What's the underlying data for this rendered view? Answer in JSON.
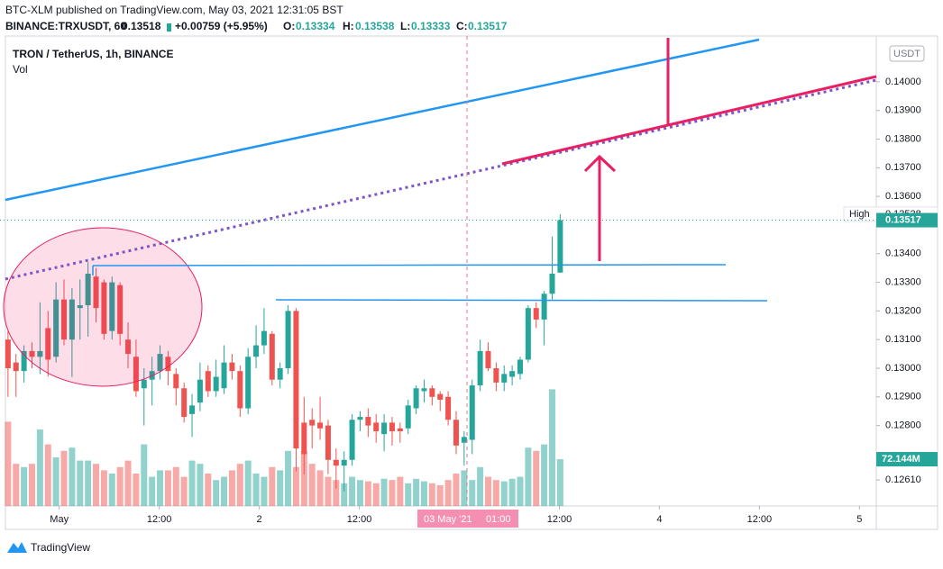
{
  "header": {
    "publisher": "BTC-XLM published on TradingView.com, May 03, 2021 12:31:05 BST",
    "symbol": "BINANCE:TRXUSDT, 60",
    "price": "0.13518",
    "change": "+0.00759 (+5.95%)",
    "o": "O:",
    "h": "H:",
    "l": "L:",
    "c": "C:"
  },
  "legend": {
    "title": "TRON / TetherUS, 1h, BINANCE",
    "volume": "Vol"
  },
  "currency": "USDT",
  "crosshair": {
    "date": "03 May '21",
    "time": "01:00"
  },
  "footer": {
    "brand": "TradingView"
  },
  "chart_data": {
    "type": "candlestick",
    "up_color": "#26a69a",
    "down_color": "#ef5350",
    "open": [
      0.131,
      0.1302,
      0.1299,
      0.1306,
      0.1304,
      0.1314,
      0.1304,
      0.1324,
      0.131,
      0.1321,
      0.1322,
      0.1332,
      0.133,
      0.1313,
      0.1329,
      0.131,
      0.1304,
      0.1293,
      0.1296,
      0.1299,
      0.1304,
      0.1298,
      0.1293,
      0.1284,
      0.1288,
      0.1299,
      0.1292,
      0.1293,
      0.1302,
      0.1299,
      0.1286,
      0.1304,
      0.1308,
      0.1312,
      0.1296,
      0.13,
      0.132,
      0.1281,
      0.1282,
      0.1281,
      0.128,
      0.1268,
      0.1266,
      0.1268,
      0.1282,
      0.1283,
      0.1281,
      0.1277,
      0.1281,
      0.1279,
      0.1279,
      0.1286,
      0.1292,
      0.1293,
      0.1291,
      0.129,
      0.1282,
      0.1274,
      0.1275,
      0.1294,
      0.1306,
      0.13,
      0.1295,
      0.1297,
      0.1298,
      0.1303,
      0.1321,
      0.1317,
      0.1326,
      0.13334
    ],
    "high": [
      0.1313,
      0.1305,
      0.1308,
      0.1309,
      0.1323,
      0.132,
      0.133,
      0.1331,
      0.1328,
      0.1331,
      0.1337,
      0.1335,
      0.1331,
      0.1332,
      0.133,
      0.1316,
      0.131,
      0.13,
      0.1304,
      0.1308,
      0.1306,
      0.13,
      0.1295,
      0.1291,
      0.1302,
      0.1301,
      0.1303,
      0.1308,
      0.1305,
      0.1301,
      0.1307,
      0.1315,
      0.1321,
      0.1313,
      0.1302,
      0.1322,
      0.1321,
      0.129,
      0.1286,
      0.129,
      0.1282,
      0.1272,
      0.1271,
      0.1284,
      0.1285,
      0.1286,
      0.1284,
      0.1284,
      0.1283,
      0.1281,
      0.1289,
      0.1294,
      0.1296,
      0.1294,
      0.1292,
      0.1292,
      0.1285,
      0.1278,
      0.1296,
      0.131,
      0.1309,
      0.1302,
      0.1301,
      0.1301,
      0.1304,
      0.1322,
      0.1323,
      0.1327,
      0.1346,
      0.13538
    ],
    "low": [
      0.129,
      0.129,
      0.1295,
      0.13,
      0.1298,
      0.1297,
      0.1302,
      0.1308,
      0.1297,
      0.131,
      0.1311,
      0.1316,
      0.131,
      0.131,
      0.1308,
      0.13,
      0.129,
      0.128,
      0.1287,
      0.1296,
      0.1294,
      0.1287,
      0.1281,
      0.1276,
      0.1285,
      0.129,
      0.129,
      0.1291,
      0.1296,
      0.1283,
      0.1284,
      0.13,
      0.1305,
      0.1294,
      0.1293,
      0.1298,
      0.1264,
      0.1263,
      0.1272,
      0.1275,
      0.1263,
      0.1258,
      0.1257,
      0.1266,
      0.1278,
      0.1276,
      0.1274,
      0.1271,
      0.1273,
      0.1274,
      0.1277,
      0.1284,
      0.1288,
      0.1287,
      0.1285,
      0.128,
      0.127,
      0.1266,
      0.127,
      0.1292,
      0.1299,
      0.1292,
      0.1292,
      0.1294,
      0.1296,
      0.1302,
      0.1314,
      0.1308,
      0.1324,
      0.13333
    ],
    "close": [
      0.13,
      0.1299,
      0.1306,
      0.1304,
      0.1306,
      0.1303,
      0.1324,
      0.131,
      0.1324,
      0.1322,
      0.1333,
      0.1321,
      0.1312,
      0.133,
      0.1312,
      0.1305,
      0.1292,
      0.1296,
      0.1299,
      0.1305,
      0.1299,
      0.1293,
      0.1283,
      0.1287,
      0.1296,
      0.1292,
      0.1297,
      0.1302,
      0.1299,
      0.1286,
      0.1304,
      0.1308,
      0.1313,
      0.1296,
      0.13,
      0.132,
      0.1272,
      0.127,
      0.128,
      0.1279,
      0.1268,
      0.1266,
      0.1268,
      0.1282,
      0.1283,
      0.128,
      0.1278,
      0.1281,
      0.1278,
      0.1278,
      0.1287,
      0.1293,
      0.1293,
      0.129,
      0.1289,
      0.1282,
      0.1273,
      0.1276,
      0.1294,
      0.1306,
      0.13,
      0.1295,
      0.1298,
      0.1299,
      0.1303,
      0.1321,
      0.1317,
      0.1326,
      0.1333,
      0.13517
    ],
    "volume": [
      130,
      65,
      60,
      65,
      118,
      95,
      75,
      85,
      90,
      70,
      70,
      65,
      55,
      50,
      60,
      70,
      50,
      95,
      45,
      55,
      55,
      60,
      45,
      70,
      65,
      50,
      40,
      45,
      55,
      65,
      70,
      50,
      45,
      60,
      55,
      85,
      60,
      85,
      65,
      55,
      45,
      40,
      35,
      45,
      40,
      38,
      35,
      42,
      40,
      45,
      35,
      42,
      38,
      35,
      32,
      40,
      50,
      55,
      40,
      60,
      45,
      40,
      38,
      42,
      45,
      90,
      85,
      95,
      180,
      72.144
    ],
    "xlim": [
      -1,
      108.5
    ],
    "xticks": [
      {
        "value": 6.4,
        "label": "May"
      },
      {
        "value": 18.9,
        "label": "12:00"
      },
      {
        "value": 31.4,
        "label": "2"
      },
      {
        "value": 43.9,
        "label": "12:00"
      },
      {
        "value": 68.9,
        "label": "12:00"
      },
      {
        "value": 81.4,
        "label": "4"
      },
      {
        "value": 93.9,
        "label": "12:00"
      },
      {
        "value": 106.4,
        "label": "5"
      }
    ],
    "ylim": [
      0.12519,
      0.1416
    ],
    "yticks": [
      {
        "value": 0.1261,
        "label": "0.12610"
      },
      {
        "value": 0.128,
        "label": "0.12800"
      },
      {
        "value": 0.129,
        "label": "0.12900"
      },
      {
        "value": 0.13,
        "label": "0.13000"
      },
      {
        "value": 0.131,
        "label": "0.13100"
      },
      {
        "value": 0.132,
        "label": "0.13200"
      },
      {
        "value": 0.133,
        "label": "0.13300"
      },
      {
        "value": 0.134,
        "label": "0.13400"
      },
      {
        "value": 0.136,
        "label": "0.13600"
      },
      {
        "value": 0.137,
        "label": "0.13700"
      },
      {
        "value": 0.138,
        "label": "0.13800"
      },
      {
        "value": 0.139,
        "label": "0.13900"
      },
      {
        "value": 0.14,
        "label": "0.14000"
      }
    ],
    "price_tags": [
      {
        "name": "High",
        "value": 0.13538,
        "label": "0.13538"
      },
      {
        "value": 0.13517,
        "label": "0.13517"
      }
    ],
    "volume_tag": {
      "value": 72.144,
      "label": "72.144M"
    }
  }
}
